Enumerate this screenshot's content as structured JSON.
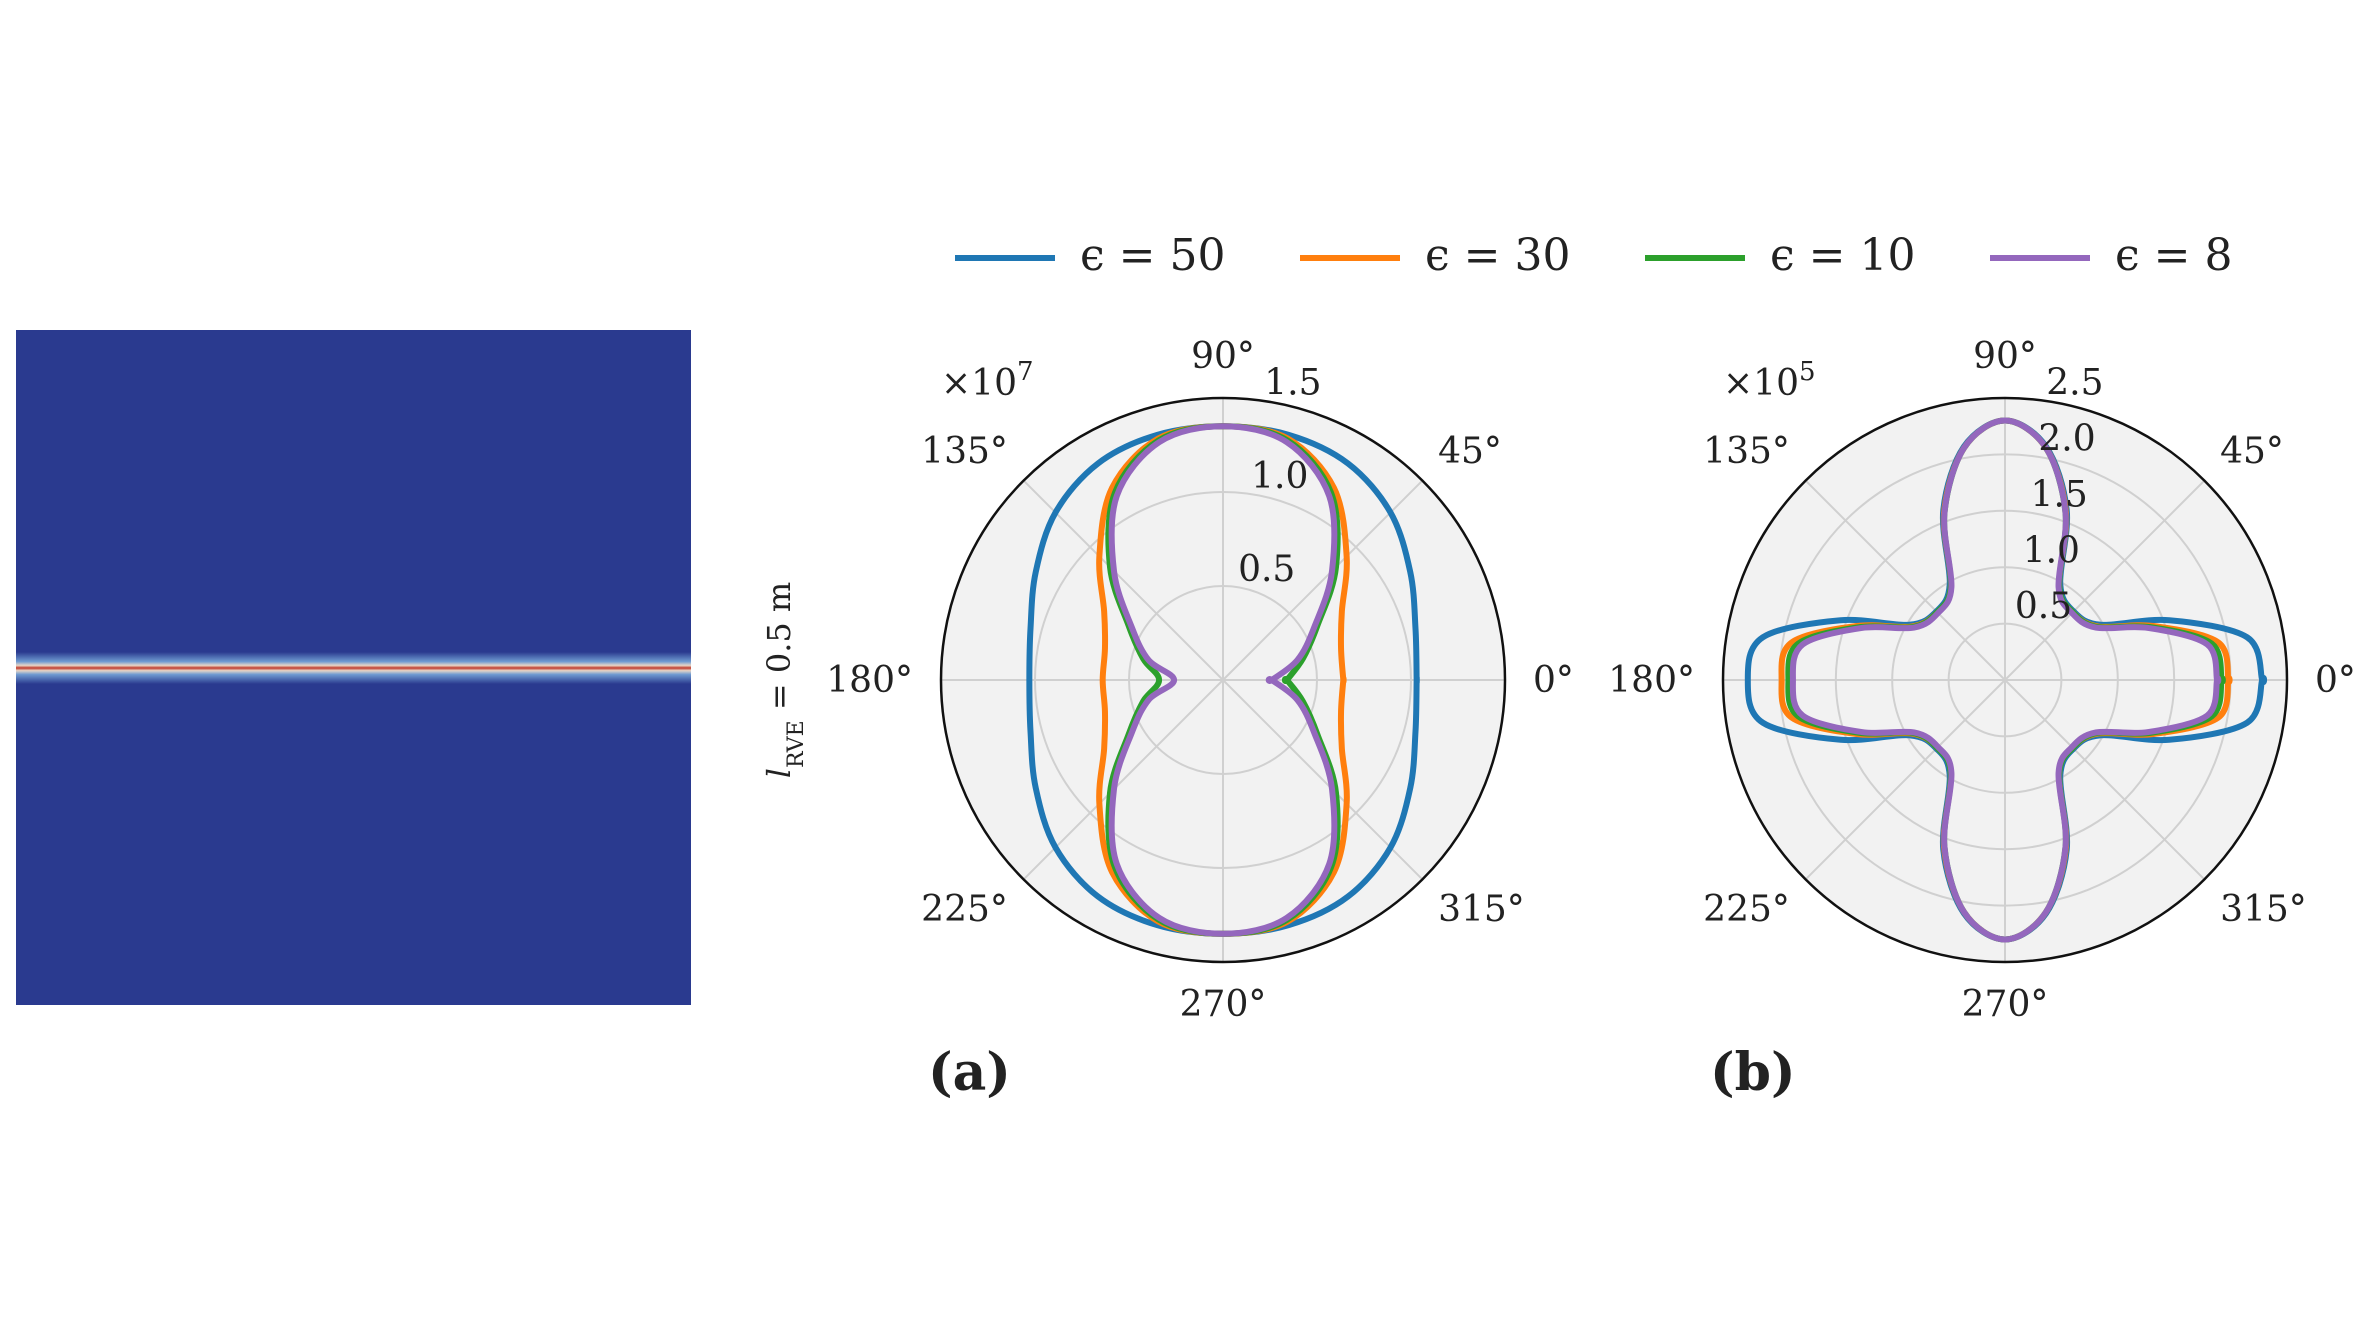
{
  "colors": {
    "field_background": "#2a3a8f",
    "field_band_core": "#c0392b",
    "grid": "#d0d0d0",
    "polar_face": "#f2f2f2",
    "outline": "#111111"
  },
  "legend": {
    "entries": [
      {
        "label": "ϵ = 50",
        "color": "#1f77b4"
      },
      {
        "label": "ϵ = 30",
        "color": "#ff7f0e"
      },
      {
        "label": "ϵ = 10",
        "color": "#2ca02c"
      },
      {
        "label": "ϵ = 8",
        "color": "#9467bd"
      }
    ],
    "placement": "top"
  },
  "side_label": {
    "main": "l",
    "sub": "RVE",
    "rest": " = 0.5 m"
  },
  "chart_data": [
    {
      "type": "polar",
      "panel_label": "(a)",
      "scale_label": "×10",
      "scale_exp": "7",
      "rlim": [
        0,
        1.5
      ],
      "r_ticks": [
        "0.5",
        "1.0",
        "1.5"
      ],
      "angle_ticks": [
        "0°",
        "45°",
        "90°",
        "135°",
        "180°",
        "225°",
        "270°",
        "315°"
      ],
      "grid": true,
      "series": [
        {
          "name": "ϵ = 50",
          "color": "#1f77b4",
          "theta_deg": [
            0,
            15,
            30,
            45,
            60,
            75,
            90
          ],
          "r": [
            1.03,
            1.06,
            1.15,
            1.26,
            1.33,
            1.35,
            1.35
          ]
        },
        {
          "name": "ϵ = 30",
          "color": "#ff7f0e",
          "theta_deg": [
            0,
            15,
            30,
            45,
            60,
            75,
            90
          ],
          "r": [
            0.64,
            0.65,
            0.73,
            0.93,
            1.18,
            1.33,
            1.35
          ]
        },
        {
          "name": "ϵ = 10",
          "color": "#2ca02c",
          "theta_deg": [
            0,
            15,
            30,
            45,
            60,
            75,
            90
          ],
          "r": [
            0.34,
            0.44,
            0.58,
            0.85,
            1.15,
            1.32,
            1.35
          ]
        },
        {
          "name": "ϵ = 8",
          "color": "#9467bd",
          "theta_deg": [
            0,
            15,
            30,
            45,
            60,
            75,
            90
          ],
          "r": [
            0.26,
            0.41,
            0.56,
            0.82,
            1.13,
            1.31,
            1.35
          ]
        }
      ]
    },
    {
      "type": "polar",
      "panel_label": "(b)",
      "scale_label": "×10",
      "scale_exp": "5",
      "rlim": [
        0,
        2.5
      ],
      "r_ticks": [
        "0.5",
        "1.0",
        "1.5",
        "2.0",
        "2.5"
      ],
      "angle_ticks": [
        "0°",
        "45°",
        "90°",
        "135°",
        "180°",
        "225°",
        "270°",
        "315°"
      ],
      "grid": true,
      "series": [
        {
          "name": "ϵ = 50",
          "color": "#1f77b4",
          "theta_deg": [
            0,
            10,
            20,
            30,
            45,
            60,
            70,
            80,
            90
          ],
          "r": [
            2.28,
            2.18,
            1.55,
            0.98,
            0.86,
            0.98,
            1.6,
            2.1,
            2.3
          ]
        },
        {
          "name": "ϵ = 30",
          "color": "#ff7f0e",
          "theta_deg": [
            0,
            10,
            20,
            30,
            45,
            60,
            70,
            80,
            90
          ],
          "r": [
            1.98,
            1.92,
            1.4,
            0.95,
            0.85,
            0.96,
            1.58,
            2.09,
            2.3
          ]
        },
        {
          "name": "ϵ = 10",
          "color": "#2ca02c",
          "theta_deg": [
            0,
            10,
            20,
            30,
            45,
            60,
            70,
            80,
            90
          ],
          "r": [
            1.92,
            1.86,
            1.37,
            0.94,
            0.85,
            0.96,
            1.57,
            2.09,
            2.3
          ]
        },
        {
          "name": "ϵ = 8",
          "color": "#9467bd",
          "theta_deg": [
            0,
            10,
            20,
            30,
            45,
            60,
            70,
            80,
            90
          ],
          "r": [
            1.88,
            1.82,
            1.35,
            0.93,
            0.84,
            0.95,
            1.57,
            2.09,
            2.3
          ]
        }
      ]
    }
  ]
}
